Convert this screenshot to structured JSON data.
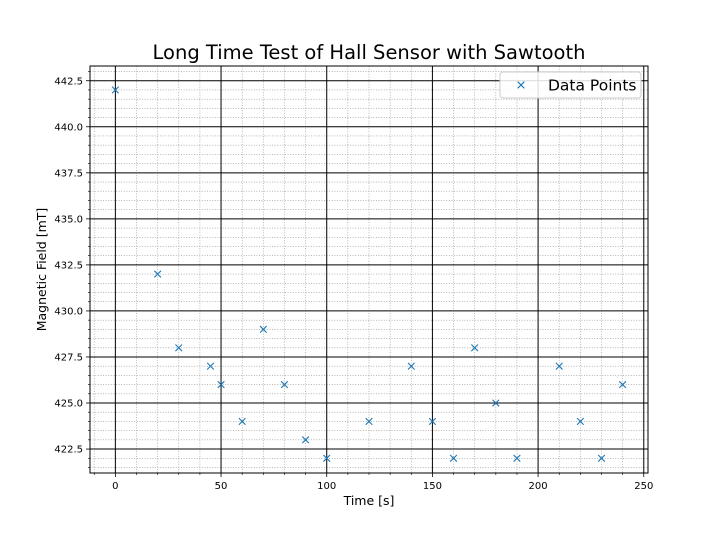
{
  "chart_data": {
    "type": "scatter",
    "title": "Long Time Test of Hall Sensor with Sawtooth",
    "xlabel": "Time [s]",
    "ylabel": "Magnetic Field [mT]",
    "xlim": [
      -12,
      252
    ],
    "ylim": [
      421.2,
      443.3
    ],
    "xticks": [
      0,
      50,
      100,
      150,
      200,
      250
    ],
    "yticks": [
      422.5,
      425.0,
      427.5,
      430.0,
      432.5,
      435.0,
      437.5,
      440.0,
      442.5
    ],
    "minor_step_x": 10,
    "minor_step_y": 0.5,
    "grid": true,
    "legend_position": "top-right",
    "marker": "x",
    "color": "#1f77b4",
    "series": [
      {
        "name": "Data Points",
        "x": [
          0,
          20,
          30,
          45,
          50,
          60,
          70,
          80,
          90,
          100,
          120,
          140,
          150,
          160,
          170,
          180,
          190,
          210,
          220,
          230,
          240
        ],
        "y": [
          442,
          432,
          428,
          427,
          426,
          424,
          429,
          426,
          423,
          422,
          424,
          427,
          424,
          422,
          428,
          425,
          422,
          427,
          424,
          422,
          426
        ]
      }
    ]
  }
}
